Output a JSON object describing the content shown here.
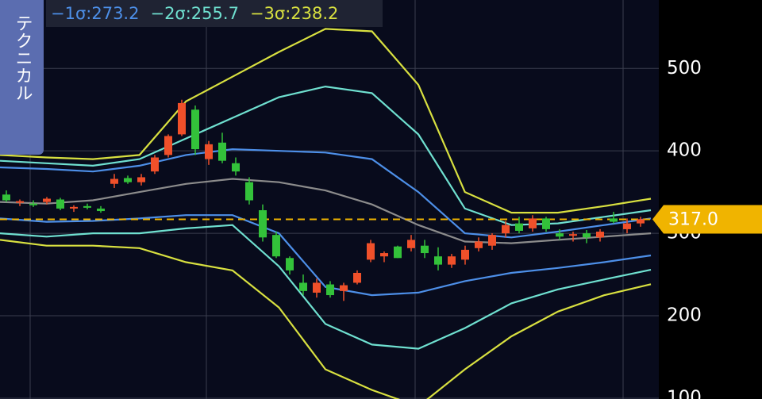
{
  "chart_data": {
    "type": "candlestick",
    "tab_label": "テクニカル",
    "ylim": [
      99,
      583
    ],
    "yticks": [
      100,
      200,
      300,
      400,
      500
    ],
    "up_color": "#f0502a",
    "down_color": "#33c23a",
    "open": [
      347,
      337,
      336,
      338,
      341,
      330,
      333,
      330,
      360,
      367,
      362,
      375,
      395,
      420,
      450,
      390,
      410,
      385,
      362,
      328,
      298,
      270,
      240,
      228,
      238,
      230,
      240,
      268,
      272,
      284,
      282,
      285,
      272,
      262,
      268,
      282,
      285,
      300,
      312,
      306,
      318,
      300,
      297,
      300,
      295,
      318,
      305,
      312
    ],
    "high": [
      352,
      341,
      340,
      344,
      343,
      334,
      336,
      333,
      372,
      370,
      372,
      395,
      420,
      462,
      455,
      412,
      422,
      392,
      368,
      335,
      302,
      272,
      250,
      245,
      242,
      240,
      255,
      292,
      278,
      285,
      298,
      292,
      283,
      275,
      285,
      295,
      300,
      315,
      320,
      322,
      320,
      305,
      302,
      304,
      305,
      326,
      318,
      320
    ],
    "low": [
      338,
      333,
      332,
      335,
      328,
      326,
      329,
      325,
      355,
      360,
      358,
      372,
      392,
      418,
      395,
      383,
      385,
      370,
      335,
      290,
      270,
      250,
      225,
      222,
      222,
      218,
      238,
      265,
      265,
      270,
      278,
      270,
      255,
      258,
      262,
      278,
      280,
      295,
      300,
      302,
      302,
      292,
      290,
      288,
      290,
      312,
      300,
      308
    ],
    "close": [
      340,
      339,
      334,
      342,
      330,
      332,
      331,
      327,
      366,
      362,
      368,
      392,
      418,
      458,
      402,
      408,
      388,
      375,
      340,
      295,
      272,
      255,
      230,
      240,
      225,
      237,
      252,
      288,
      276,
      270,
      292,
      276,
      262,
      272,
      280,
      290,
      298,
      310,
      303,
      318,
      305,
      296,
      299,
      295,
      302,
      314,
      312,
      317
    ],
    "middle": {
      "color": "#8c8c8c",
      "values": [
        338,
        336,
        340,
        350,
        360,
        366,
        362,
        352,
        335,
        310,
        290,
        288,
        292,
        296,
        300
      ]
    },
    "bands": [
      {
        "name": "−1σ:273.2",
        "color": "#4d8fe8",
        "upper": [
          380,
          378,
          375,
          382,
          395,
          402,
          400,
          398,
          390,
          350,
          300,
          295,
          302,
          310,
          318
        ],
        "lower": [
          318,
          314,
          315,
          318,
          322,
          322,
          300,
          235,
          225,
          228,
          242,
          252,
          258,
          265,
          273.2
        ]
      },
      {
        "name": "−2σ:255.7",
        "color": "#6fe0d0",
        "upper": [
          388,
          385,
          382,
          390,
          415,
          440,
          465,
          478,
          470,
          420,
          330,
          310,
          312,
          320,
          328
        ],
        "lower": [
          300,
          296,
          300,
          300,
          306,
          310,
          260,
          190,
          165,
          160,
          185,
          215,
          232,
          244,
          255.7
        ]
      },
      {
        "name": "−3σ:238.2",
        "color": "#d8e040",
        "upper": [
          395,
          392,
          390,
          395,
          460,
          490,
          520,
          548,
          545,
          480,
          350,
          325,
          325,
          333,
          342
        ],
        "lower": [
          292,
          285,
          285,
          282,
          265,
          255,
          210,
          135,
          110,
          90,
          135,
          175,
          205,
          225,
          238.2
        ]
      }
    ],
    "last_price": {
      "value": 317,
      "label": "317.0"
    },
    "last_price_color": "#f0b400"
  }
}
